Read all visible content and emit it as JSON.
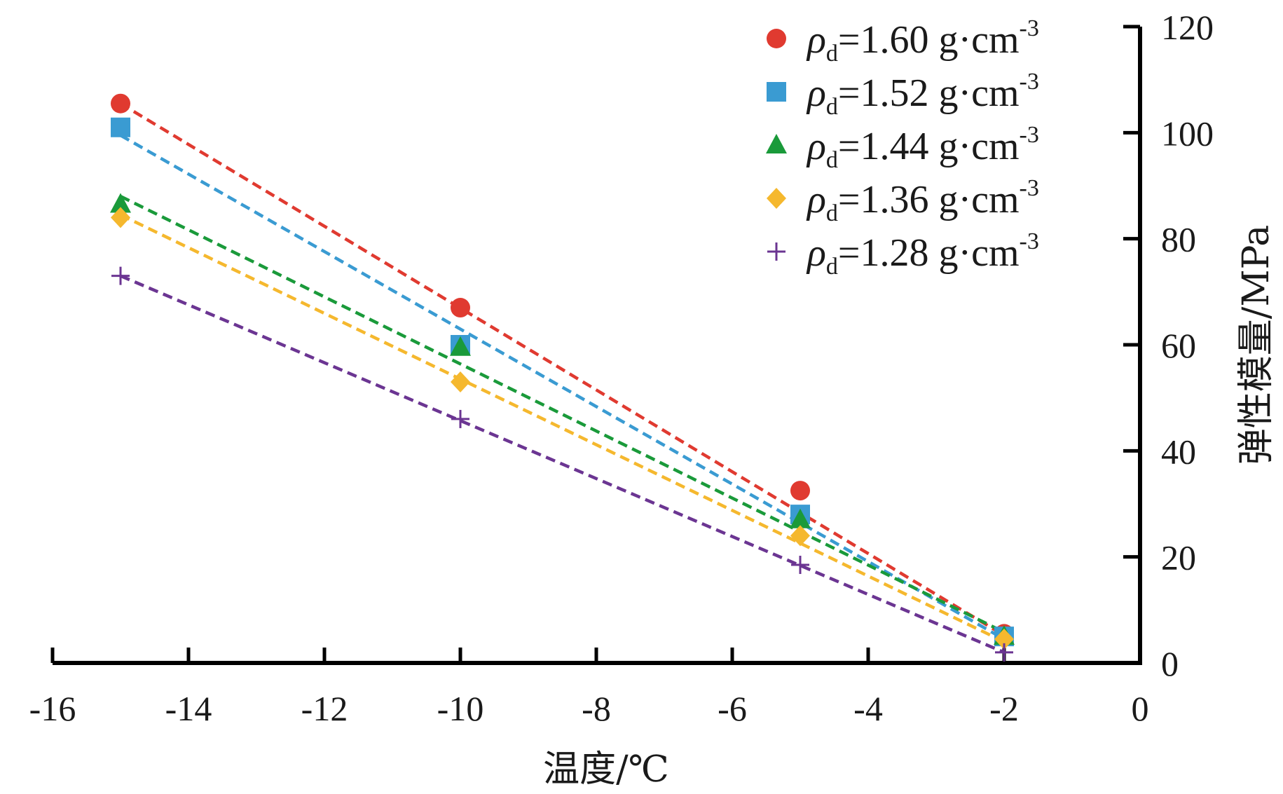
{
  "chart_data": {
    "type": "scatter",
    "xlabel": "温度/℃",
    "ylabel": "弹性模量/MPa",
    "xlim": [
      -16,
      0
    ],
    "ylim": [
      0,
      120
    ],
    "x_ticks": [
      "-16",
      "-14",
      "-12",
      "-10",
      "-8",
      "-6",
      "-4",
      "-2",
      "0"
    ],
    "y_ticks": [
      "0",
      "20",
      "40",
      "60",
      "80",
      "100",
      "120"
    ],
    "grid": false,
    "legend_position": "top-right",
    "x": [
      -15,
      -10,
      -5,
      -2
    ],
    "series": [
      {
        "name": "ρd=1.60 g·cm-3",
        "symbol": "ρ",
        "subscript": "d",
        "value_text": "=1.60 g·cm",
        "superscript": "-3",
        "marker": "circle",
        "color": "#e03a30",
        "values": [
          105.5,
          67,
          32.5,
          5.5
        ],
        "fit": [
          105.5,
          5.2
        ]
      },
      {
        "name": "ρd=1.52 g·cm-3",
        "symbol": "ρ",
        "subscript": "d",
        "value_text": "=1.52 g·cm",
        "superscript": "-3",
        "marker": "square",
        "color": "#3a9bd2",
        "values": [
          101,
          60,
          28,
          5
        ],
        "fit": [
          99.5,
          4.5
        ]
      },
      {
        "name": "ρd=1.44 g·cm-3",
        "symbol": "ρ",
        "subscript": "d",
        "value_text": "=1.44 g·cm",
        "superscript": "-3",
        "marker": "triangle",
        "color": "#1a9a3a",
        "values": [
          86.5,
          59.5,
          27,
          5
        ],
        "fit": [
          88,
          5.8
        ]
      },
      {
        "name": "ρd=1.36 g·cm-3",
        "symbol": "ρ",
        "subscript": "d",
        "value_text": "=1.36 g·cm",
        "superscript": "-3",
        "marker": "diamond",
        "color": "#f5b82e",
        "values": [
          84,
          53,
          24,
          4.5
        ],
        "fit": [
          84.5,
          4
        ]
      },
      {
        "name": "ρd=1.28 g·cm-3",
        "symbol": "ρ",
        "subscript": "d",
        "value_text": "=1.28 g·cm",
        "superscript": "-3",
        "marker": "plus",
        "color": "#6b3592",
        "values": [
          73,
          46,
          18.5,
          2
        ],
        "fit": [
          73,
          2
        ]
      }
    ]
  }
}
